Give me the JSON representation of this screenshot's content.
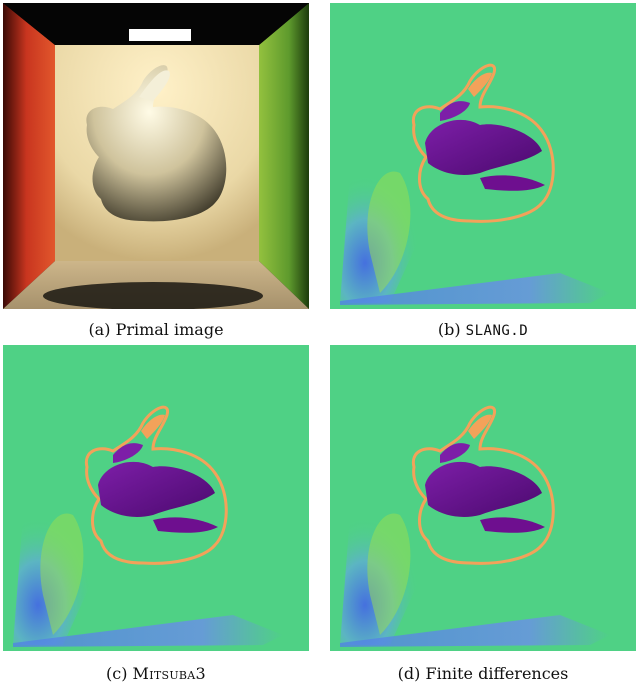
{
  "figure": {
    "panels": [
      {
        "id": "a",
        "label": "(a)",
        "text": "Primal image",
        "style": "serif"
      },
      {
        "id": "b",
        "label": "(b)",
        "text": "SLANG.D",
        "style": "mono"
      },
      {
        "id": "c",
        "label": "(c)",
        "text": "Mitsuba3",
        "style": "smallcaps"
      },
      {
        "id": "d",
        "label": "(d)",
        "text": "Finite differences",
        "style": "serif"
      }
    ]
  },
  "colors": {
    "background_green": "#4fd185",
    "wall_left": "#c8351f",
    "wall_right": "#5e9a2d",
    "wall_back": "#efe0b4",
    "ceiling": "#0a0a0a",
    "bunny": "#d8cfae",
    "gradient_purple": "#6e0f8f",
    "gradient_orange": "#f3a25a",
    "gradient_blue": "#5a6fe0"
  }
}
